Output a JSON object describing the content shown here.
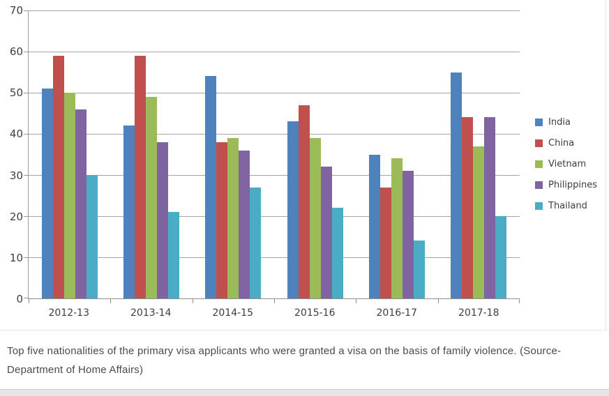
{
  "chart_data": {
    "type": "bar",
    "title": "",
    "xlabel": "",
    "ylabel": "",
    "categories": [
      "2012-13",
      "2013-14",
      "2014-15",
      "2015-16",
      "2016-17",
      "2017-18"
    ],
    "series": [
      {
        "name": "India",
        "color": "#4F81BD",
        "values": [
          51,
          42,
          54,
          43,
          35,
          55
        ]
      },
      {
        "name": "China",
        "color": "#C0504D",
        "values": [
          59,
          59,
          38,
          47,
          27,
          44
        ]
      },
      {
        "name": "Vietnam",
        "color": "#9BBB59",
        "values": [
          50,
          49,
          39,
          39,
          34,
          37
        ]
      },
      {
        "name": "Philippines",
        "color": "#8064A2",
        "values": [
          46,
          38,
          36,
          32,
          31,
          44
        ]
      },
      {
        "name": "Thailand",
        "color": "#4BACC6",
        "values": [
          30,
          21,
          27,
          22,
          14,
          20
        ]
      }
    ],
    "y_ticks": [
      0,
      10,
      20,
      30,
      40,
      50,
      60,
      70
    ],
    "ylim": [
      0,
      70
    ],
    "grid": true,
    "legend_position": "right"
  },
  "colors": {
    "gridline": "#a4a4a4",
    "axis": "#8c8c8c",
    "tick_text": "#3d3d3d",
    "caption_text": "#4a4a4a"
  },
  "caption": {
    "text": "Top five nationalities of the primary visa applicants who were granted a visa on the basis of family violence. (Source- Department of Home Affairs)"
  }
}
